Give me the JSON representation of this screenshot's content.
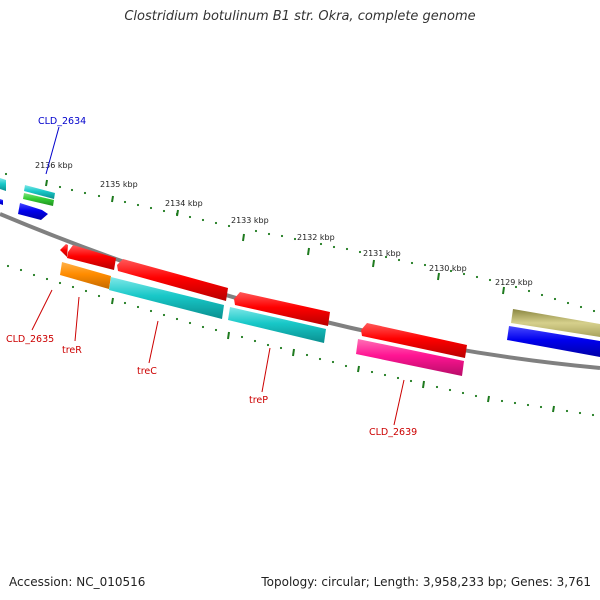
{
  "header": {
    "title": "Clostridium botulinum B1 str. Okra, complete genome"
  },
  "footer": {
    "accession": "Accession: NC_010516",
    "stats": "Topology: circular; Length: 3,958,233 bp; Genes: 3,761"
  },
  "ticks": [
    "2136 kbp",
    "2135 kbp",
    "2134 kbp",
    "2133 kbp",
    "2132 kbp",
    "2131 kbp",
    "2130 kbp",
    "2129 kbp"
  ],
  "genes": [
    "CLD_2634",
    "CLD_2635",
    "treR",
    "treC",
    "treP",
    "CLD_2639"
  ],
  "colors": {
    "backbone": "#808080",
    "tick": "#1e7a1e",
    "forward_label": "#0000cc",
    "reverse_label": "#cc0000",
    "cds_red": "#ff0000",
    "cds_cyan": "#18c8c8",
    "cds_orange": "#ff8c00",
    "cds_magenta": "#ff1493",
    "cds_khaki": "#bdb76b",
    "cds_blue": "#0000ee",
    "cds_green": "#33cc33"
  }
}
